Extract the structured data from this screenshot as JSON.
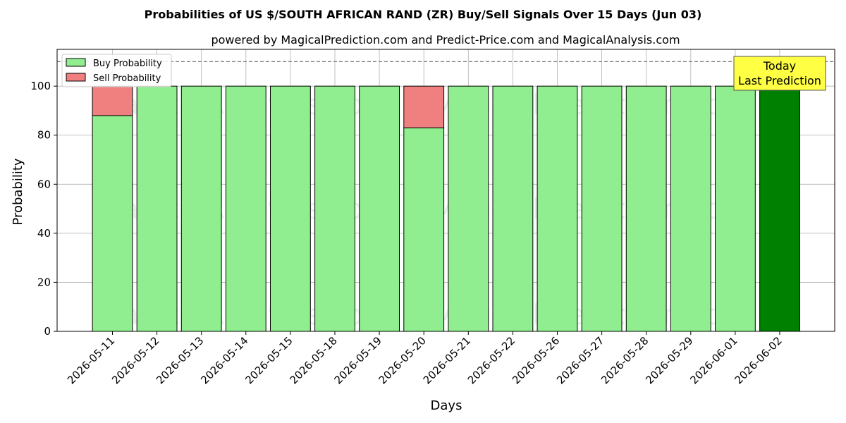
{
  "chart_data": {
    "type": "bar",
    "stacked": true,
    "title": "Probabilities of US $/SOUTH AFRICAN RAND (ZR) Buy/Sell Signals Over 15 Days (Jun 03)",
    "subtitle": "powered by MagicalPrediction.com and Predict-Price.com and MagicalAnalysis.com",
    "xlabel": "Days",
    "ylabel": "Probability",
    "ylim": [
      0,
      115
    ],
    "yticks": [
      0,
      20,
      40,
      60,
      80,
      100
    ],
    "grid": true,
    "legend_position": "top-left",
    "categories": [
      "2026-05-11",
      "2026-05-12",
      "2026-05-13",
      "2026-05-14",
      "2026-05-15",
      "2026-05-18",
      "2026-05-19",
      "2026-05-20",
      "2026-05-21",
      "2026-05-22",
      "2026-05-26",
      "2026-05-27",
      "2026-05-28",
      "2026-05-29",
      "2026-06-01",
      "2026-06-02"
    ],
    "series": [
      {
        "name": "Buy Probability",
        "color": "#90ee90",
        "highlight_color": "#008000",
        "values": [
          88,
          100,
          100,
          100,
          100,
          100,
          100,
          83,
          100,
          100,
          100,
          100,
          100,
          100,
          100,
          100
        ]
      },
      {
        "name": "Sell Probability",
        "color": "#f08080",
        "highlight_color": "#ff0000",
        "values": [
          12,
          0,
          0,
          0,
          0,
          0,
          0,
          17,
          0,
          0,
          0,
          0,
          0,
          0,
          0,
          0
        ]
      }
    ],
    "reference_line": {
      "y": 110,
      "style": "dashed",
      "color": "#808080"
    },
    "annotation": {
      "lines": [
        "Today",
        "Last Prediction"
      ],
      "category": "2026-06-02",
      "color": "#ffff44"
    },
    "watermarks": [
      "MagicalAnalysis.com",
      "MagicalPrediction.com"
    ]
  }
}
